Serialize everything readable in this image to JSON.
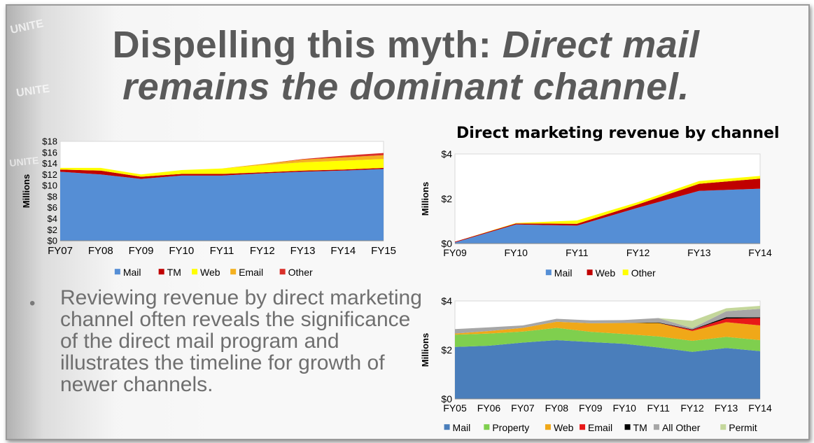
{
  "slide": {
    "title_plain": "Dispelling this myth: ",
    "title_italic_1": "Direct mail",
    "title_italic_2": "remains the dominant channel.",
    "bullet_marker": "•",
    "bullet_text": "Reviewing revenue by direct marketing channel often reveals the significance of the direct mail program and illustrates the timeline for growth of newer channels.",
    "background_watermark_words": [
      "UNITE",
      "UNITE",
      "UNITE"
    ]
  },
  "chart_data": [
    {
      "type": "area",
      "stacked": true,
      "title": "",
      "ylabel": "Millions",
      "categories": [
        "FY07",
        "FY08",
        "FY09",
        "FY10",
        "FY11",
        "FY12",
        "FY13",
        "FY14",
        "FY15"
      ],
      "ylim": [
        0,
        18
      ],
      "yticks": [
        "$0",
        "$2",
        "$4",
        "$6",
        "$8",
        "$10",
        "$12",
        "$14",
        "$16",
        "$18"
      ],
      "legend_position": "bottom",
      "series": [
        {
          "name": "Mail",
          "color": "#558ed5",
          "values": [
            12.5,
            12.0,
            11.2,
            11.8,
            11.8,
            12.2,
            12.5,
            12.7,
            13.0
          ]
        },
        {
          "name": "TM",
          "color": "#c00000",
          "values": [
            0.4,
            0.7,
            0.4,
            0.3,
            0.3,
            0.2,
            0.2,
            0.2,
            0.2
          ]
        },
        {
          "name": "Web",
          "color": "#ffff00",
          "values": [
            0.3,
            0.5,
            0.4,
            0.7,
            1.0,
            1.3,
            1.5,
            1.6,
            1.6
          ]
        },
        {
          "name": "Email",
          "color": "#f4b120",
          "values": [
            0.0,
            0.0,
            0.0,
            0.0,
            0.0,
            0.2,
            0.5,
            0.6,
            0.7
          ]
        },
        {
          "name": "Other",
          "color": "#d9302a",
          "values": [
            0.0,
            0.0,
            0.0,
            0.0,
            0.0,
            0.0,
            0.1,
            0.3,
            0.4
          ]
        }
      ]
    },
    {
      "type": "area",
      "stacked": true,
      "title": "Direct marketing revenue by channel",
      "ylabel": "Millions",
      "categories": [
        "FY09",
        "FY10",
        "FY11",
        "FY12",
        "FY13",
        "FY14"
      ],
      "ylim": [
        0,
        4
      ],
      "yticks": [
        "$0",
        "$2",
        "$4"
      ],
      "legend_position": "bottom",
      "series": [
        {
          "name": "Mail",
          "color": "#558ed5",
          "values": [
            0.05,
            0.85,
            0.8,
            1.6,
            2.35,
            2.45
          ]
        },
        {
          "name": "Web",
          "color": "#c00000",
          "values": [
            0.03,
            0.05,
            0.08,
            0.15,
            0.32,
            0.45
          ]
        },
        {
          "name": "Other",
          "color": "#ffff00",
          "values": [
            0.0,
            0.02,
            0.15,
            0.1,
            0.12,
            0.12
          ]
        }
      ]
    },
    {
      "type": "area",
      "stacked": true,
      "title": "",
      "ylabel": "Millions",
      "categories": [
        "FY05",
        "FY06",
        "FY07",
        "FY08",
        "FY09",
        "FY10",
        "FY11",
        "FY12",
        "FY13",
        "FY14"
      ],
      "ylim": [
        0,
        4
      ],
      "yticks": [
        "$0",
        "$2",
        "$4"
      ],
      "legend_position": "bottom",
      "series": [
        {
          "name": "Mail",
          "color": "#4a7ebb",
          "values": [
            2.12,
            2.17,
            2.3,
            2.4,
            2.32,
            2.25,
            2.1,
            1.92,
            2.08,
            1.95
          ]
        },
        {
          "name": "Property",
          "color": "#7fcf4e",
          "values": [
            0.5,
            0.5,
            0.45,
            0.5,
            0.42,
            0.4,
            0.45,
            0.45,
            0.45,
            0.45
          ]
        },
        {
          "name": "Web",
          "color": "#f0a818",
          "values": [
            0.05,
            0.1,
            0.15,
            0.25,
            0.35,
            0.45,
            0.55,
            0.4,
            0.6,
            0.6
          ]
        },
        {
          "name": "Email",
          "color": "#e81818",
          "values": [
            0.0,
            0.0,
            0.0,
            0.0,
            0.0,
            0.0,
            0.0,
            0.05,
            0.15,
            0.3
          ]
        },
        {
          "name": "TM",
          "color": "#000000",
          "values": [
            0.0,
            0.0,
            0.0,
            0.0,
            0.0,
            0.0,
            0.02,
            0.02,
            0.05,
            0.03
          ]
        },
        {
          "name": "All Other",
          "color": "#a6a6a6",
          "values": [
            0.18,
            0.15,
            0.1,
            0.12,
            0.12,
            0.12,
            0.18,
            0.05,
            0.25,
            0.35
          ]
        },
        {
          "name": "Permit",
          "color": "#c4d79b",
          "values": [
            0.0,
            0.0,
            0.0,
            0.0,
            0.0,
            0.0,
            0.0,
            0.3,
            0.12,
            0.12
          ]
        }
      ]
    }
  ]
}
